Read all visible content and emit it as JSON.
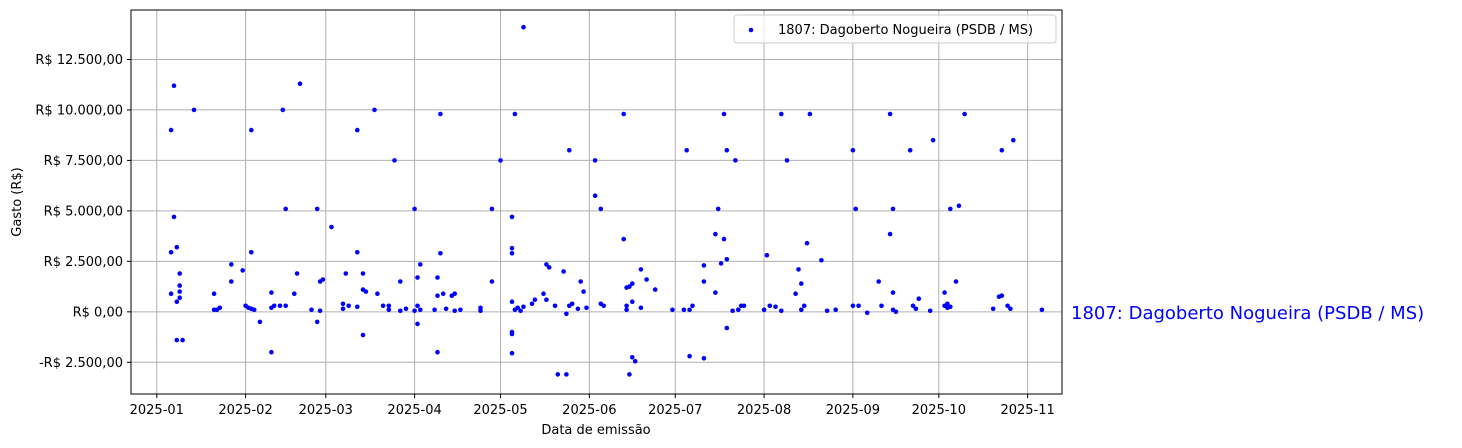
{
  "chart_data": {
    "type": "scatter",
    "xlabel": "Data de emissão",
    "ylabel": "Gasto (R$)",
    "x_ticks": [
      "2025-01",
      "2025-02",
      "2025-03",
      "2025-04",
      "2025-05",
      "2025-06",
      "2025-07",
      "2025-08",
      "2025-09",
      "2025-10",
      "2025-11"
    ],
    "y_ticks": [
      {
        "value": -2500,
        "label": "-R$ 2.500,00"
      },
      {
        "value": 0,
        "label": "R$ 0,00"
      },
      {
        "value": 2500,
        "label": "R$ 2.500,00"
      },
      {
        "value": 5000,
        "label": "R$ 5.000,00"
      },
      {
        "value": 7500,
        "label": "R$ 7.500,00"
      },
      {
        "value": 10000,
        "label": "R$ 10.000,00"
      },
      {
        "value": 12500,
        "label": "R$ 12.500,00"
      }
    ],
    "xlim": [
      "2024-12-23",
      "2025-11-13"
    ],
    "ylim": [
      -4070,
      14950
    ],
    "grid": true,
    "legend_position": "top-right",
    "marker_color": "#0000ff",
    "side_label_color": "#0000ff",
    "side_label": "1807: Dagoberto Nogueira (PSDB / MS)",
    "series": [
      {
        "name": "1807: Dagoberto Nogueira (PSDB / MS)",
        "points": [
          [
            "2025-01-06",
            9000
          ],
          [
            "2025-01-07",
            11200
          ],
          [
            "2025-01-06",
            2950
          ],
          [
            "2025-01-06",
            900
          ],
          [
            "2025-01-07",
            4700
          ],
          [
            "2025-01-08",
            3200
          ],
          [
            "2025-01-08",
            500
          ],
          [
            "2025-01-08",
            -1400
          ],
          [
            "2025-01-09",
            1900
          ],
          [
            "2025-01-09",
            1300
          ],
          [
            "2025-01-09",
            1000
          ],
          [
            "2025-01-09",
            700
          ],
          [
            "2025-01-10",
            -1400
          ],
          [
            "2025-01-14",
            10000
          ],
          [
            "2025-01-21",
            900
          ],
          [
            "2025-01-21",
            100
          ],
          [
            "2025-01-22",
            100
          ],
          [
            "2025-01-23",
            200
          ],
          [
            "2025-01-27",
            2350
          ],
          [
            "2025-01-27",
            1500
          ],
          [
            "2025-01-31",
            2050
          ],
          [
            "2025-02-01",
            300
          ],
          [
            "2025-02-02",
            200
          ],
          [
            "2025-02-03",
            9000
          ],
          [
            "2025-02-03",
            2950
          ],
          [
            "2025-02-03",
            150
          ],
          [
            "2025-02-04",
            100
          ],
          [
            "2025-02-06",
            -500
          ],
          [
            "2025-02-10",
            -2000
          ],
          [
            "2025-02-10",
            950
          ],
          [
            "2025-02-10",
            200
          ],
          [
            "2025-02-11",
            300
          ],
          [
            "2025-02-13",
            300
          ],
          [
            "2025-02-14",
            10000
          ],
          [
            "2025-02-15",
            5100
          ],
          [
            "2025-02-15",
            300
          ],
          [
            "2025-02-18",
            900
          ],
          [
            "2025-02-19",
            1900
          ],
          [
            "2025-02-20",
            11300
          ],
          [
            "2025-02-24",
            100
          ],
          [
            "2025-02-26",
            5100
          ],
          [
            "2025-02-26",
            -500
          ],
          [
            "2025-02-27",
            1500
          ],
          [
            "2025-02-27",
            50
          ],
          [
            "2025-02-28",
            1600
          ],
          [
            "2025-03-03",
            4200
          ],
          [
            "2025-03-07",
            400
          ],
          [
            "2025-03-07",
            150
          ],
          [
            "2025-03-08",
            1900
          ],
          [
            "2025-03-09",
            300
          ],
          [
            "2025-03-12",
            9000
          ],
          [
            "2025-03-12",
            2950
          ],
          [
            "2025-03-12",
            250
          ],
          [
            "2025-03-14",
            1900
          ],
          [
            "2025-03-14",
            1100
          ],
          [
            "2025-03-14",
            -1150
          ],
          [
            "2025-03-15",
            1000
          ],
          [
            "2025-03-18",
            10000
          ],
          [
            "2025-03-19",
            900
          ],
          [
            "2025-03-21",
            300
          ],
          [
            "2025-03-23",
            300
          ],
          [
            "2025-03-23",
            100
          ],
          [
            "2025-03-25",
            7500
          ],
          [
            "2025-03-27",
            1500
          ],
          [
            "2025-03-27",
            50
          ],
          [
            "2025-03-29",
            150
          ],
          [
            "2025-04-01",
            5100
          ],
          [
            "2025-04-01",
            50
          ],
          [
            "2025-04-02",
            -600
          ],
          [
            "2025-04-02",
            300
          ],
          [
            "2025-04-02",
            1700
          ],
          [
            "2025-04-03",
            2350
          ],
          [
            "2025-04-03",
            100
          ],
          [
            "2025-04-08",
            100
          ],
          [
            "2025-04-09",
            1700
          ],
          [
            "2025-04-09",
            -2000
          ],
          [
            "2025-04-09",
            800
          ],
          [
            "2025-04-10",
            9800
          ],
          [
            "2025-04-10",
            2900
          ],
          [
            "2025-04-11",
            900
          ],
          [
            "2025-04-12",
            150
          ],
          [
            "2025-04-14",
            800
          ],
          [
            "2025-04-15",
            50
          ],
          [
            "2025-04-15",
            900
          ],
          [
            "2025-04-17",
            100
          ],
          [
            "2025-04-24",
            200
          ],
          [
            "2025-04-24",
            50
          ],
          [
            "2025-04-28",
            1500
          ],
          [
            "2025-04-28",
            5100
          ],
          [
            "2025-05-01",
            7500
          ],
          [
            "2025-05-05",
            4700
          ],
          [
            "2025-05-05",
            3150
          ],
          [
            "2025-05-06",
            9800
          ],
          [
            "2025-05-05",
            2900
          ],
          [
            "2025-05-05",
            500
          ],
          [
            "2025-05-05",
            -1000
          ],
          [
            "2025-05-05",
            -1100
          ],
          [
            "2025-05-05",
            -2050
          ],
          [
            "2025-05-06",
            100
          ],
          [
            "2025-05-07",
            200
          ],
          [
            "2025-05-08",
            50
          ],
          [
            "2025-05-09",
            14100
          ],
          [
            "2025-05-09",
            250
          ],
          [
            "2025-05-12",
            400
          ],
          [
            "2025-05-13",
            600
          ],
          [
            "2025-05-16",
            900
          ],
          [
            "2025-05-17",
            2350
          ],
          [
            "2025-05-17",
            600
          ],
          [
            "2025-05-18",
            2200
          ],
          [
            "2025-05-20",
            300
          ],
          [
            "2025-05-21",
            -3100
          ],
          [
            "2025-05-23",
            2000
          ],
          [
            "2025-05-24",
            -3100
          ],
          [
            "2025-05-24",
            -100
          ],
          [
            "2025-05-25",
            8000
          ],
          [
            "2025-05-25",
            300
          ],
          [
            "2025-05-26",
            400
          ],
          [
            "2025-05-28",
            150
          ],
          [
            "2025-05-29",
            1500
          ],
          [
            "2025-05-30",
            1000
          ],
          [
            "2025-05-31",
            200
          ],
          [
            "2025-06-03",
            7500
          ],
          [
            "2025-06-03",
            5750
          ],
          [
            "2025-06-05",
            5100
          ],
          [
            "2025-06-05",
            400
          ],
          [
            "2025-06-06",
            300
          ],
          [
            "2025-06-13",
            9800
          ],
          [
            "2025-06-13",
            3600
          ],
          [
            "2025-06-14",
            1200
          ],
          [
            "2025-06-14",
            300
          ],
          [
            "2025-06-14",
            100
          ],
          [
            "2025-06-15",
            -3100
          ],
          [
            "2025-06-15",
            1250
          ],
          [
            "2025-06-16",
            -2250
          ],
          [
            "2025-06-16",
            1400
          ],
          [
            "2025-06-16",
            500
          ],
          [
            "2025-06-17",
            -2450
          ],
          [
            "2025-06-19",
            2100
          ],
          [
            "2025-06-19",
            200
          ],
          [
            "2025-06-21",
            1600
          ],
          [
            "2025-06-24",
            1100
          ],
          [
            "2025-06-30",
            100
          ],
          [
            "2025-07-04",
            100
          ],
          [
            "2025-07-05",
            8000
          ],
          [
            "2025-07-06",
            -2200
          ],
          [
            "2025-07-06",
            100
          ],
          [
            "2025-07-07",
            300
          ],
          [
            "2025-07-11",
            1500
          ],
          [
            "2025-07-11",
            2300
          ],
          [
            "2025-07-11",
            -2300
          ],
          [
            "2025-07-15",
            3850
          ],
          [
            "2025-07-15",
            950
          ],
          [
            "2025-07-16",
            5100
          ],
          [
            "2025-07-17",
            2400
          ],
          [
            "2025-07-18",
            9800
          ],
          [
            "2025-07-18",
            3600
          ],
          [
            "2025-07-19",
            8000
          ],
          [
            "2025-07-19",
            2600
          ],
          [
            "2025-07-19",
            -800
          ],
          [
            "2025-07-21",
            50
          ],
          [
            "2025-07-22",
            7500
          ],
          [
            "2025-07-23",
            100
          ],
          [
            "2025-07-24",
            300
          ],
          [
            "2025-07-25",
            300
          ],
          [
            "2025-08-01",
            100
          ],
          [
            "2025-08-02",
            2800
          ],
          [
            "2025-08-03",
            300
          ],
          [
            "2025-08-05",
            250
          ],
          [
            "2025-08-07",
            9800
          ],
          [
            "2025-08-07",
            50
          ],
          [
            "2025-08-09",
            7500
          ],
          [
            "2025-08-12",
            900
          ],
          [
            "2025-08-13",
            2100
          ],
          [
            "2025-08-14",
            1400
          ],
          [
            "2025-08-14",
            100
          ],
          [
            "2025-08-15",
            300
          ],
          [
            "2025-08-16",
            3400
          ],
          [
            "2025-08-17",
            9800
          ],
          [
            "2025-08-21",
            2550
          ],
          [
            "2025-08-23",
            50
          ],
          [
            "2025-08-26",
            100
          ],
          [
            "2025-09-01",
            300
          ],
          [
            "2025-09-01",
            8000
          ],
          [
            "2025-09-02",
            5100
          ],
          [
            "2025-09-03",
            300
          ],
          [
            "2025-09-06",
            -50
          ],
          [
            "2025-09-10",
            1500
          ],
          [
            "2025-09-11",
            300
          ],
          [
            "2025-09-14",
            9800
          ],
          [
            "2025-09-14",
            3850
          ],
          [
            "2025-09-15",
            5100
          ],
          [
            "2025-09-15",
            100
          ],
          [
            "2025-09-15",
            950
          ],
          [
            "2025-09-16",
            0
          ],
          [
            "2025-09-21",
            8000
          ],
          [
            "2025-09-22",
            300
          ],
          [
            "2025-09-23",
            150
          ],
          [
            "2025-09-24",
            650
          ],
          [
            "2025-09-28",
            50
          ],
          [
            "2025-09-29",
            8500
          ],
          [
            "2025-10-03",
            950
          ],
          [
            "2025-10-03",
            300
          ],
          [
            "2025-10-04",
            200
          ],
          [
            "2025-10-04",
            400
          ],
          [
            "2025-10-05",
            5100
          ],
          [
            "2025-10-05",
            250
          ],
          [
            "2025-10-07",
            1500
          ],
          [
            "2025-10-08",
            5250
          ],
          [
            "2025-10-10",
            9800
          ],
          [
            "2025-10-20",
            150
          ],
          [
            "2025-10-22",
            750
          ],
          [
            "2025-10-23",
            800
          ],
          [
            "2025-10-23",
            8000
          ],
          [
            "2025-10-25",
            300
          ],
          [
            "2025-10-26",
            150
          ],
          [
            "2025-10-27",
            8500
          ],
          [
            "2025-11-06",
            100
          ]
        ]
      }
    ]
  }
}
